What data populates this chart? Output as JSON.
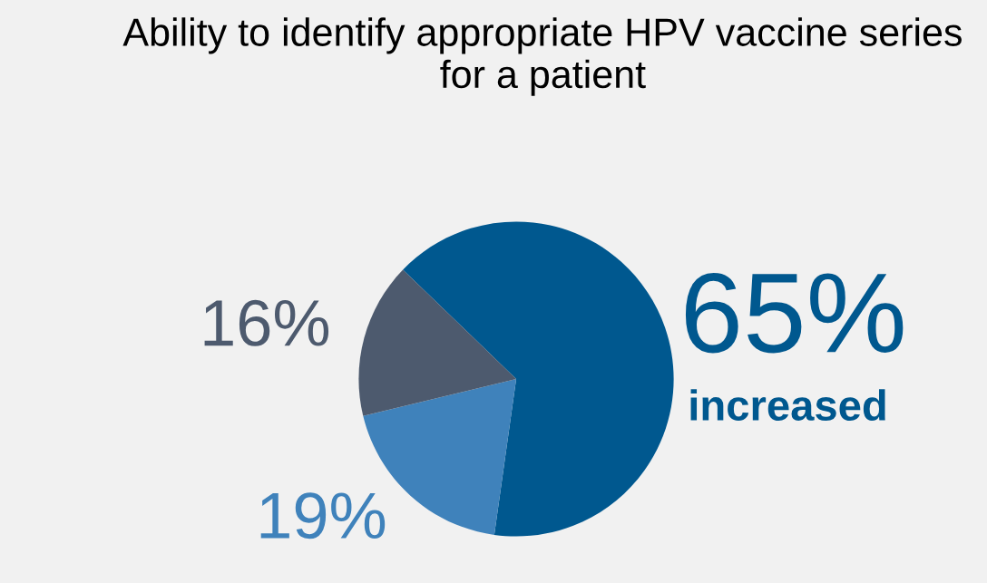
{
  "chart_data": {
    "type": "pie",
    "title": "Ability to identify appropriate HPV vaccine series for a patient",
    "categories": [
      "increased",
      null,
      null
    ],
    "values": [
      65,
      19,
      16
    ],
    "colors": [
      "#00588f",
      "#3f82bb",
      "#4d5a6e"
    ],
    "value_labels": [
      "65%",
      "19%",
      "16%"
    ]
  }
}
